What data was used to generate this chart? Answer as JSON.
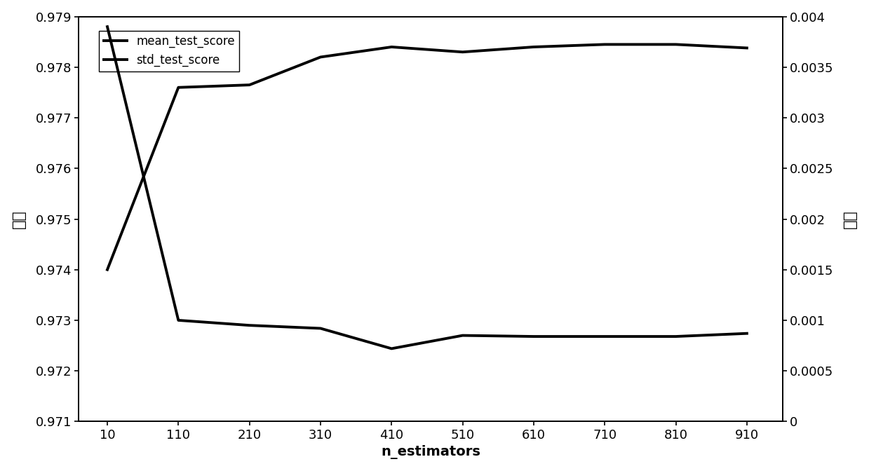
{
  "x": [
    10,
    110,
    210,
    310,
    410,
    510,
    610,
    710,
    810,
    910
  ],
  "mean_test_score": [
    0.974,
    0.9776,
    0.97765,
    0.9782,
    0.9784,
    0.9783,
    0.9784,
    0.97845,
    0.97845,
    0.97838
  ],
  "std_test_score": [
    0.0039,
    0.001,
    0.00095,
    0.00092,
    0.00072,
    0.00085,
    0.00084,
    0.00084,
    0.00084,
    0.00087
  ],
  "xlabel": "n_estimators",
  "ylabel_left": "分数",
  "ylabel_right": "方差",
  "ylim_left": [
    0.971,
    0.979
  ],
  "ylim_right": [
    0,
    0.004
  ],
  "yticks_left": [
    0.971,
    0.972,
    0.973,
    0.974,
    0.975,
    0.976,
    0.977,
    0.978,
    0.979
  ],
  "yticks_right": [
    0,
    0.0005,
    0.001,
    0.0015,
    0.002,
    0.0025,
    0.003,
    0.0035,
    0.004
  ],
  "xticks": [
    10,
    110,
    210,
    310,
    410,
    510,
    610,
    710,
    810,
    910
  ],
  "legend_labels": [
    "mean_test_score",
    "std_test_score"
  ],
  "line_color": "#000000",
  "line_width": 2.8,
  "background_color": "#ffffff",
  "font_size": 13
}
